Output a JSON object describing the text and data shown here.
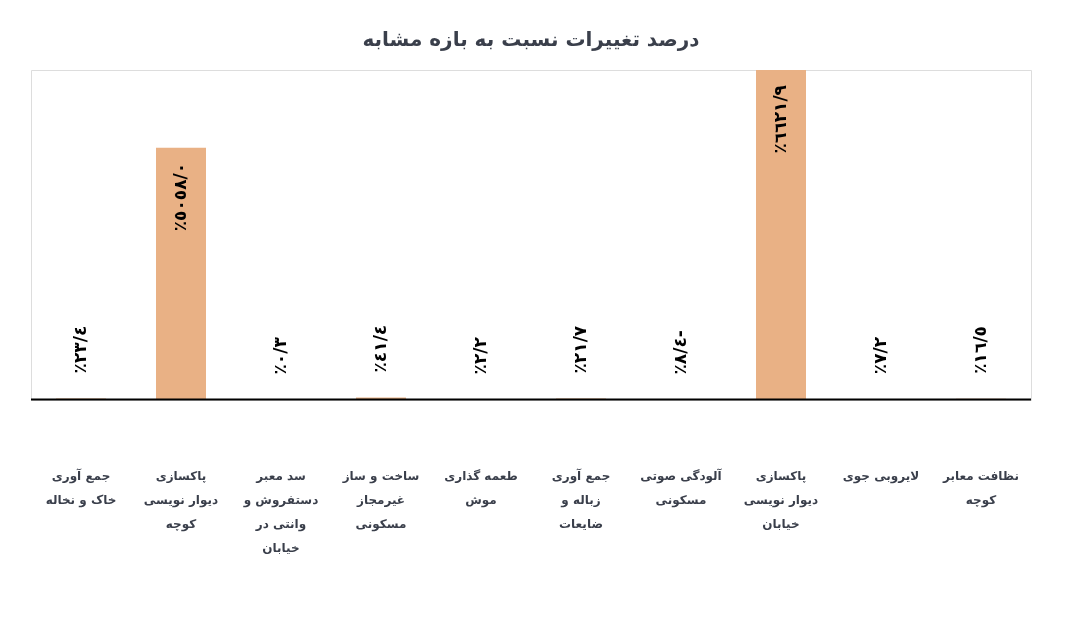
{
  "chart_data": {
    "type": "bar",
    "title": "درصد تغییرات نسبت به بازه مشابه",
    "categories": [
      "جمع آوری خاک و نخاله",
      "پاکسازی دیوار نویسی کوچه",
      "سد معبر دستفروش و وانتی در خیابان",
      "ساخت و ساز غیرمجاز مسکونی",
      "طعمه گذاری موش",
      "جمع آوری زباله و ضایعات",
      "آلودگی صوتی مسکونی",
      "پاکسازی دیوار نویسی خیابان",
      "لایروبی جوی",
      "نظافت معابر کوچه"
    ],
    "values": [
      23.4,
      5058.0,
      0.3,
      41.4,
      2.2,
      21.7,
      -8.4,
      6621.9,
      7.2,
      16.5
    ],
    "value_labels": [
      "٪۲۳/٤",
      "٪٥٠٥۸/٠",
      "٪٠/۳",
      "٪٤۱/٤",
      "٪۲/۲",
      "٪۲۱/۷",
      "٪۸/٤-",
      "٪٦٦۲۱/۹",
      "٪۷/۲",
      "٪۱٦/٥"
    ],
    "color": "#e9b185",
    "grid": false
  }
}
